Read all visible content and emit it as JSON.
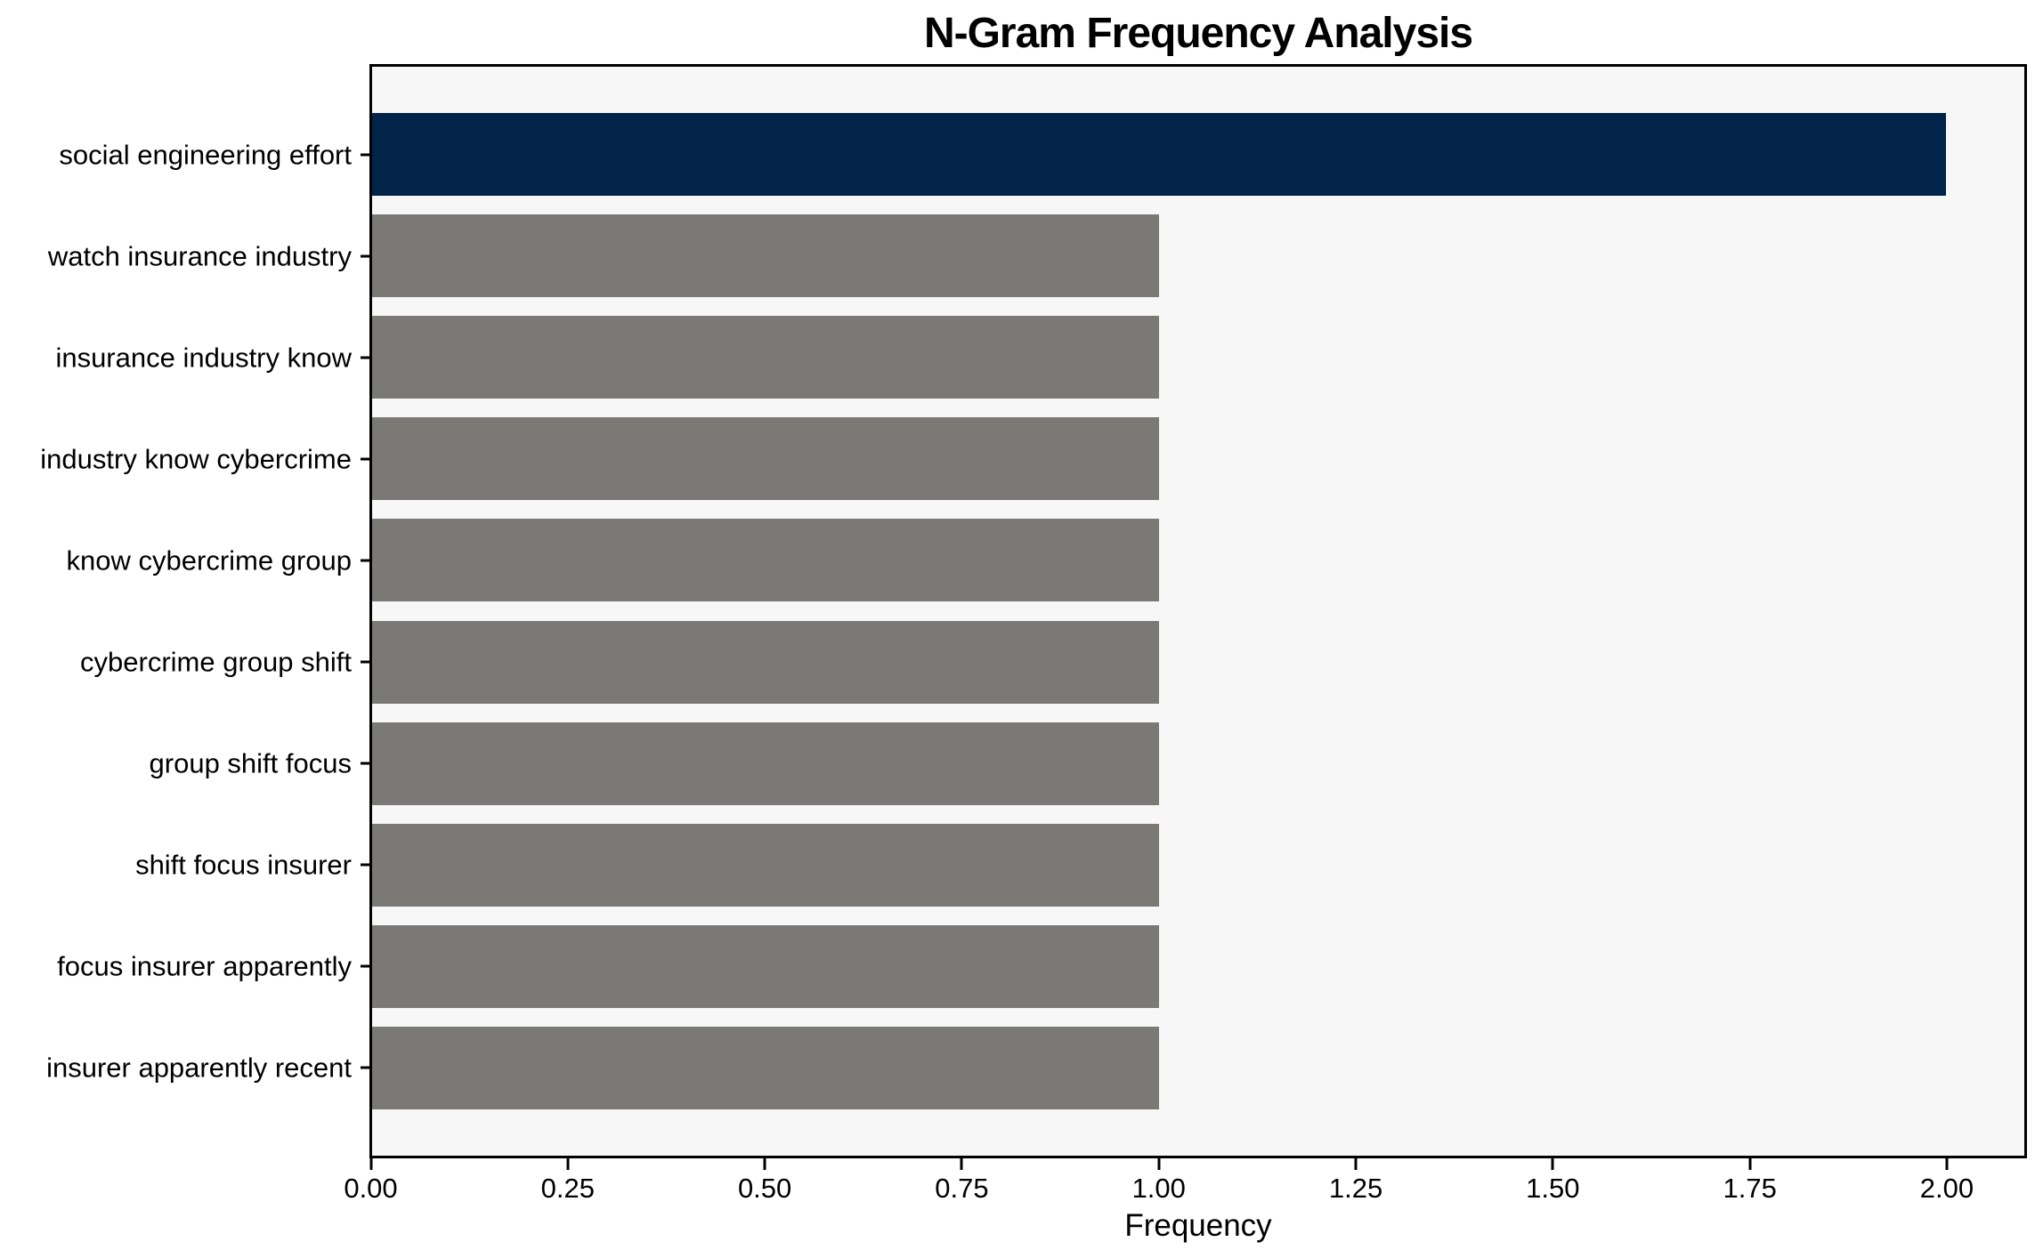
{
  "chart_data": {
    "type": "bar",
    "orientation": "horizontal",
    "title": "N-Gram Frequency Analysis",
    "xlabel": "Frequency",
    "ylabel": "",
    "categories": [
      "social engineering effort",
      "watch insurance industry",
      "insurance industry know",
      "industry know cybercrime",
      "know cybercrime group",
      "cybercrime group shift",
      "group shift focus",
      "shift focus insurer",
      "focus insurer apparently",
      "insurer apparently recent"
    ],
    "values": [
      2,
      1,
      1,
      1,
      1,
      1,
      1,
      1,
      1,
      1
    ],
    "bar_colors": [
      "#02234a",
      "#7a7975",
      "#7a7975",
      "#7a7975",
      "#7a7975",
      "#7a7975",
      "#7a7975",
      "#7a7975",
      "#7a7975",
      "#7a7975"
    ],
    "xlim": [
      0,
      2.1
    ],
    "xtick_values": [
      0,
      0.25,
      0.5,
      0.75,
      1.0,
      1.25,
      1.5,
      1.75,
      2.0
    ],
    "xtick_labels": [
      "0.00",
      "0.25",
      "0.50",
      "0.75",
      "1.00",
      "1.25",
      "1.50",
      "1.75",
      "2.00"
    ],
    "grid": false,
    "legend": "none",
    "colors": {
      "highlight_bar": "#02234a",
      "default_bar": "#7a7975",
      "plot_background": "#f7f7f7",
      "figure_background": "#ffffff",
      "spine": "#000000",
      "text": "#000000"
    }
  }
}
